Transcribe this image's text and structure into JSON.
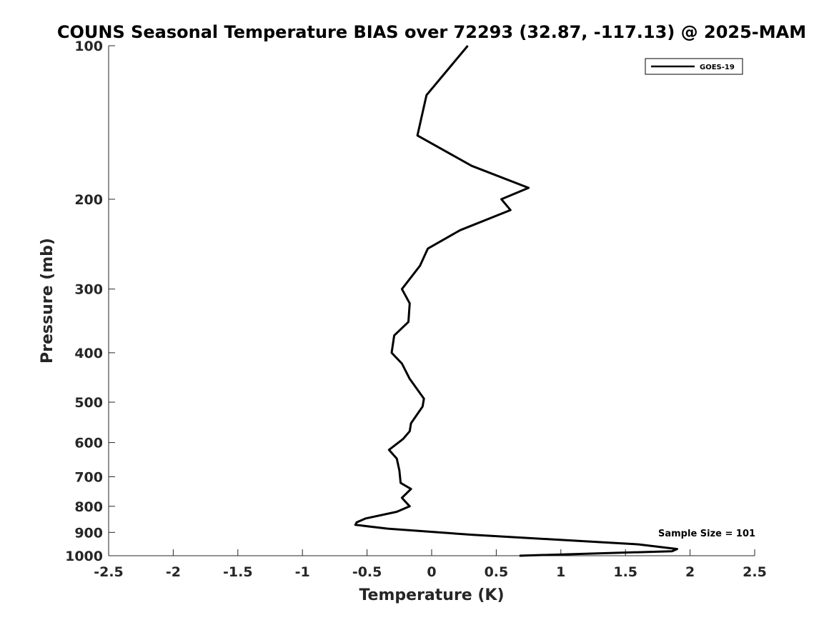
{
  "chart_data": {
    "type": "line",
    "title": "COUNS Seasonal Temperature BIAS over 72293 (32.87, -117.13) @ 2025-MAM",
    "xlabel": "Temperature (K)",
    "ylabel": "Pressure (mb)",
    "xlim": [
      -2.5,
      2.5
    ],
    "ylim": [
      100,
      1000
    ],
    "yscale": "log",
    "y_reversed": true,
    "xticks": [
      "-2.5",
      "-2",
      "-1.5",
      "-1",
      "-0.5",
      "0",
      "0.5",
      "1",
      "1.5",
      "2",
      "2.5"
    ],
    "yticks": [
      "100",
      "200",
      "300",
      "400",
      "500",
      "600",
      "700",
      "800",
      "900",
      "1000"
    ],
    "grid": false,
    "legend": {
      "position": "top-right",
      "entries": [
        "GOES-19"
      ]
    },
    "annotation": "Sample Size = 101",
    "series": [
      {
        "name": "GOES-19",
        "color": "#000000",
        "x": [
          0.28,
          -0.04,
          -0.11,
          0.31,
          0.75,
          0.54,
          0.61,
          0.22,
          -0.03,
          -0.09,
          -0.23,
          -0.17,
          -0.18,
          -0.29,
          -0.31,
          -0.23,
          -0.17,
          -0.06,
          -0.07,
          -0.16,
          -0.17,
          -0.22,
          -0.33,
          -0.27,
          -0.25,
          -0.24,
          -0.16,
          -0.23,
          -0.17,
          -0.27,
          -0.51,
          -0.58,
          -0.59,
          -0.34,
          0.32,
          1.6,
          1.9,
          1.86,
          0.68
        ],
        "y": [
          100,
          125,
          150,
          172,
          190,
          200,
          210,
          230,
          250,
          270,
          300,
          320,
          348,
          370,
          400,
          420,
          450,
          492,
          510,
          550,
          570,
          590,
          620,
          645,
          680,
          720,
          740,
          770,
          800,
          820,
          845,
          860,
          870,
          885,
          910,
          950,
          970,
          980,
          1000
        ]
      }
    ]
  }
}
